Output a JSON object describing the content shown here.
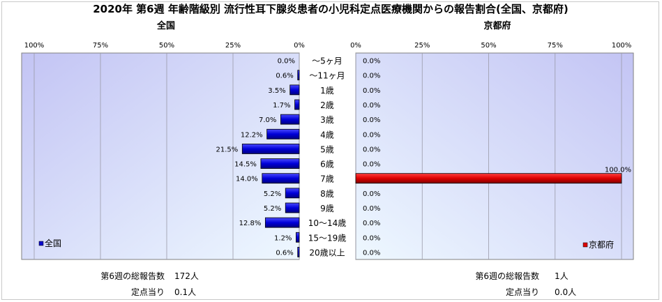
{
  "title": "2020年 第6週 年齢階級別 流行性耳下腺炎患者の小児科定点医療機関からの報告割合(全国、京都府)",
  "colors": {
    "national": "#0a0acc",
    "kyoto": "#dd0000",
    "panel_bg": "#c5c8f5",
    "panel_bg_light": "#e6f7ff"
  },
  "chart_data": {
    "type": "bar",
    "orientation": "horizontal",
    "categories": [
      "～5ヶ月",
      "～11ヶ月",
      "1歳",
      "2歳",
      "3歳",
      "4歳",
      "5歳",
      "6歳",
      "7歳",
      "8歳",
      "9歳",
      "10～14歳",
      "15～19歳",
      "20歳以上"
    ],
    "panels": [
      {
        "title": "全国",
        "legend": "全国",
        "legend_position": "bottom-left",
        "direction": "right-to-left",
        "xlim": [
          0,
          100
        ],
        "ticks": [
          "100%",
          "75%",
          "50%",
          "25%",
          "0%"
        ],
        "values": [
          0.0,
          0.6,
          3.5,
          1.7,
          7.0,
          12.2,
          21.5,
          14.5,
          14.0,
          5.2,
          5.2,
          12.8,
          1.2,
          0.6
        ],
        "labels": [
          "0.0%",
          "0.6%",
          "3.5%",
          "1.7%",
          "7.0%",
          "12.2%",
          "21.5%",
          "14.5%",
          "14.0%",
          "5.2%",
          "5.2%",
          "12.8%",
          "1.2%",
          "0.6%"
        ]
      },
      {
        "title": "京都府",
        "legend": "京都府",
        "legend_position": "bottom-right",
        "direction": "left-to-right",
        "xlim": [
          0,
          100
        ],
        "ticks": [
          "0%",
          "25%",
          "50%",
          "75%",
          "100%"
        ],
        "values": [
          0,
          0,
          0,
          0,
          0,
          0,
          0,
          0,
          100,
          0,
          0,
          0,
          0,
          0
        ],
        "labels": [
          "0.0%",
          "0.0%",
          "0.0%",
          "0.0%",
          "0.0%",
          "0.0%",
          "0.0%",
          "0.0%",
          "100.0%",
          "0.0%",
          "0.0%",
          "0.0%",
          "0.0%",
          "0.0%"
        ]
      }
    ],
    "grid": true
  },
  "footer": {
    "national": {
      "total_label": "第6週の総報告数",
      "total_value": "172人",
      "per_label": "定点当り",
      "per_value": "0.1人"
    },
    "kyoto": {
      "total_label": "第6週の総報告数",
      "total_value": "1人",
      "per_label": "定点当り",
      "per_value": "0.0人"
    }
  }
}
